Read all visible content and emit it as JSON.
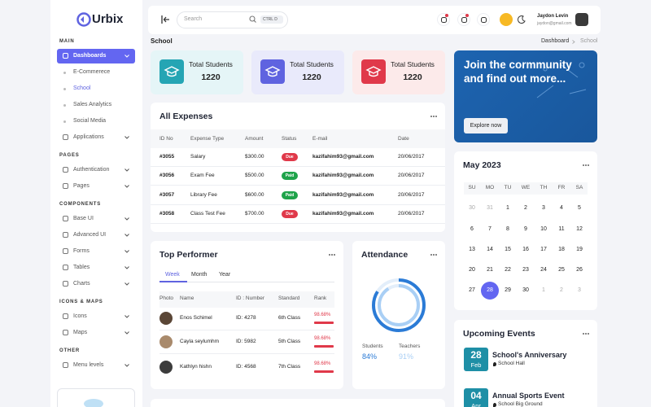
{
  "brand": "Urbix",
  "sidebar": {
    "sections": [
      {
        "title": "MAIN",
        "items": [
          {
            "label": "Dashboards",
            "active": true,
            "chevron": true
          },
          {
            "label": "E-Commerece",
            "sub": true
          },
          {
            "label": "School",
            "sub": true,
            "current": true
          },
          {
            "label": "Sales Analytics",
            "sub": true
          },
          {
            "label": "Social Media",
            "sub": true
          },
          {
            "label": "Applications",
            "chevron": true
          }
        ]
      },
      {
        "title": "PAGES",
        "items": [
          {
            "label": "Authentication",
            "chevron": true
          },
          {
            "label": "Pages",
            "chevron": true
          }
        ]
      },
      {
        "title": "COMPONENTS",
        "items": [
          {
            "label": "Base UI",
            "chevron": true
          },
          {
            "label": "Advanced UI",
            "chevron": true
          },
          {
            "label": "Forms",
            "chevron": true
          },
          {
            "label": "Tables",
            "chevron": true
          },
          {
            "label": "Charts",
            "chevron": true
          }
        ]
      },
      {
        "title": "ICONS & MAPS",
        "items": [
          {
            "label": "Icons",
            "chevron": true
          },
          {
            "label": "Maps",
            "chevron": true
          }
        ]
      },
      {
        "title": "OTHER",
        "items": [
          {
            "label": "Menu levels",
            "chevron": true
          }
        ]
      }
    ]
  },
  "header": {
    "search_placeholder": "Search",
    "shortcut": "CTRL D",
    "user_name": "Jaydon Levin",
    "user_email": "jaydon@gmail.com"
  },
  "breadcrumb": {
    "page_title": "School",
    "trail": [
      "Dashboard",
      "School"
    ]
  },
  "stats": [
    {
      "label": "Total Students",
      "value": 1220,
      "color": "#25a5b4",
      "bg": "#e5f5f7"
    },
    {
      "label": "Total Students",
      "value": 1220,
      "color": "#5f63e0",
      "bg": "#e9eafb"
    },
    {
      "label": "Total Students",
      "value": 1220,
      "color": "#e0394a",
      "bg": "#fceaea"
    }
  ],
  "promo": {
    "title": "Join the cormmunity and find out more...",
    "button": "Explore now"
  },
  "expenses": {
    "title": "All Expenses",
    "columns": [
      "ID No",
      "Expense Type",
      "Amount",
      "Status",
      "E-mail",
      "Date"
    ],
    "rows": [
      [
        "#3055",
        "Salary",
        "$300.00",
        "Due",
        "kazifahim93@gmail.com",
        "20/06/2017"
      ],
      [
        "#3056",
        "Exam Fee",
        "$500.00",
        "Paid",
        "kazifahim93@gmail.com",
        "20/06/2017"
      ],
      [
        "#3057",
        "Library Fee",
        "$600.00",
        "Paid",
        "kazifahim93@gmail.com",
        "20/06/2017"
      ],
      [
        "#3058",
        "Class Test Fee",
        "$700.00",
        "Due",
        "kazifahim93@gmail.com",
        "20/06/2017"
      ]
    ],
    "status_colors": [
      "#e0394a",
      "#1fa34a",
      "#1fa34a",
      "#e0394a"
    ]
  },
  "top_performer": {
    "title": "Top Performer",
    "tabs": [
      "Week",
      "Month",
      "Year"
    ],
    "columns": [
      "Photo",
      "Name",
      "ID : Number",
      "Standard",
      "Rank"
    ],
    "rows": [
      {
        "name": "Enos Schimel",
        "id": "ID: 4278",
        "standard": "6th Class",
        "rank": {
          "value": 98.68,
          "label": "98.68%"
        }
      },
      {
        "name": "Cayla seylumhm",
        "id": "ID: 5982",
        "standard": "5th Class",
        "rank": {
          "value": 98.68,
          "label": "98.68%"
        }
      },
      {
        "name": "Kathlyn hishn",
        "id": "ID: 4568",
        "standard": "7th Class",
        "rank": {
          "value": 98.68,
          "label": "98.68%"
        }
      }
    ]
  },
  "attendance": {
    "title": "Attendance",
    "items": [
      {
        "label": "Students",
        "value": 84,
        "value_label": "84%",
        "color": "#2b7bd6"
      },
      {
        "label": "Teachers",
        "value": 91,
        "value_label": "91%",
        "color": "#a9cff5"
      }
    ]
  },
  "calendar": {
    "title": "May 2023",
    "weekdays": [
      "SU",
      "MO",
      "TU",
      "WE",
      "TH",
      "FR",
      "SA"
    ],
    "weeks": [
      [
        30,
        31,
        1,
        2,
        3,
        4,
        5
      ],
      [
        6,
        7,
        8,
        9,
        10,
        11,
        12
      ],
      [
        13,
        14,
        15,
        16,
        17,
        18,
        19
      ],
      [
        20,
        21,
        22,
        23,
        24,
        25,
        26
      ],
      [
        27,
        28,
        29,
        30,
        1,
        2,
        3
      ]
    ],
    "selected": 28
  },
  "events": {
    "title": "Upcoming Events",
    "items": [
      {
        "day": "28",
        "month": "Feb",
        "name": "School's Anniversary",
        "place": "School Hall"
      },
      {
        "day": "04",
        "month": "Apr",
        "name": "Annual Sports Event",
        "place": "School Big Ground"
      }
    ]
  }
}
